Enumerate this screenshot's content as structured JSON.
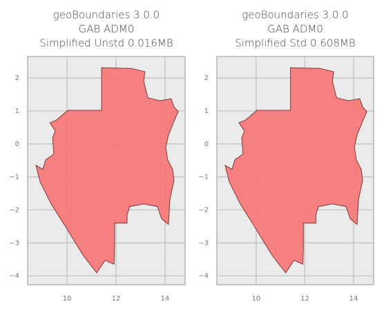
{
  "chart_data": [
    {
      "type": "map",
      "title": [
        "geoBoundaries 3.0.0",
        "GAB ADM0",
        "Simplified Unstd 0.016MB"
      ],
      "x": [
        11.41,
        12.62,
        13.18,
        13.13,
        13.3,
        13.8,
        14.25,
        14.37,
        14.54,
        14.37,
        14.14,
        14.03,
        14.11,
        14.31,
        14.37,
        14.2,
        14.14,
        13.86,
        13.69,
        13.13,
        12.56,
        12.45,
        12.45,
        11.94,
        11.94,
        11.92,
        11.55,
        11.21,
        10.65,
        9.92,
        9.35,
        8.9,
        8.73,
        9.01,
        9.13,
        9.46,
        9.41,
        9.52,
        9.3,
        9.58,
        10.03,
        11.41
      ],
      "y": [
        2.31,
        2.29,
        2.19,
        1.9,
        1.4,
        1.31,
        1.37,
        1.12,
        0.98,
        0.69,
        0.27,
        -0.1,
        -0.48,
        -0.77,
        -1.1,
        -1.69,
        -2.44,
        -2.27,
        -1.9,
        -1.82,
        -1.9,
        -2.15,
        -2.4,
        -2.4,
        -3.15,
        -3.65,
        -3.53,
        -3.91,
        -3.37,
        -2.49,
        -1.82,
        -1.15,
        -0.65,
        -0.77,
        -0.48,
        -0.31,
        0.19,
        0.39,
        0.64,
        0.73,
        1.02,
        1.02
      ],
      "color": "#f77a7a",
      "xlim": [
        8.39,
        14.82
      ],
      "ylim": [
        -4.27,
        2.65
      ],
      "xticks": [
        10,
        12,
        14
      ],
      "yticks": [
        {
          "value": -4,
          "label": "−4"
        },
        {
          "value": -3,
          "label": "−3"
        },
        {
          "value": -2,
          "label": "−2"
        },
        {
          "value": -1,
          "label": "−1"
        },
        0,
        1,
        2
      ],
      "grid": true
    },
    {
      "type": "map",
      "title": [
        "geoBoundaries 3.0.0",
        "GAB ADM0",
        "Simplified Std 0.608MB"
      ],
      "x": [
        11.41,
        12.62,
        13.18,
        13.13,
        13.3,
        13.8,
        14.25,
        14.37,
        14.54,
        14.37,
        14.14,
        14.03,
        14.11,
        14.31,
        14.37,
        14.2,
        14.14,
        13.86,
        13.69,
        13.13,
        12.56,
        12.45,
        12.45,
        11.94,
        11.94,
        11.92,
        11.55,
        11.21,
        10.65,
        9.92,
        9.35,
        8.9,
        8.73,
        9.01,
        9.13,
        9.46,
        9.41,
        9.52,
        9.3,
        9.58,
        10.03,
        11.41
      ],
      "y": [
        2.31,
        2.29,
        2.19,
        1.9,
        1.4,
        1.31,
        1.37,
        1.12,
        0.98,
        0.69,
        0.27,
        -0.1,
        -0.48,
        -0.77,
        -1.1,
        -1.69,
        -2.44,
        -2.27,
        -1.9,
        -1.82,
        -1.9,
        -2.15,
        -2.4,
        -2.4,
        -3.15,
        -3.65,
        -3.53,
        -3.91,
        -3.37,
        -2.49,
        -1.82,
        -1.15,
        -0.65,
        -0.77,
        -0.48,
        -0.31,
        0.19,
        0.39,
        0.64,
        0.73,
        1.02,
        1.02
      ],
      "color": "#f77a7a",
      "xlim": [
        8.39,
        14.82
      ],
      "ylim": [
        -4.27,
        2.65
      ],
      "xticks": [
        10,
        12,
        14
      ],
      "yticks": [
        {
          "value": -4,
          "label": "−4"
        },
        {
          "value": -3,
          "label": "−3"
        },
        {
          "value": -2,
          "label": "−2"
        },
        {
          "value": -1,
          "label": "−1"
        },
        0,
        1,
        2
      ],
      "grid": true
    }
  ]
}
